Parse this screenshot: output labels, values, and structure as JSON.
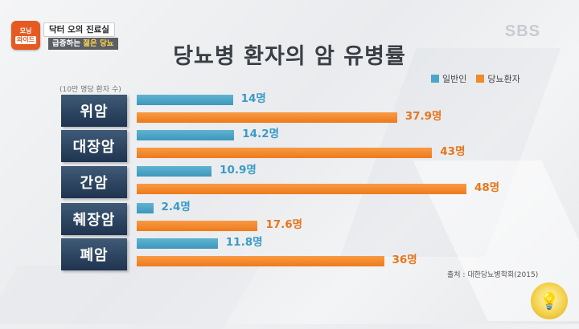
{
  "banner": {
    "badge_top": "모닝",
    "badge_bottom": "와이드",
    "line1": "닥터 오의 진료실",
    "line2_prefix": "급증하는 ",
    "line2_highlight": "젊은 당뇨"
  },
  "logo": "SBS",
  "chart_data": {
    "type": "bar",
    "orientation": "horizontal",
    "title": "당뇨병 환자의 암 유병률",
    "unit_note": "(10만 명당 환자 수)",
    "categories": [
      "위암",
      "대장암",
      "간암",
      "췌장암",
      "폐암"
    ],
    "series": [
      {
        "name": "일반인",
        "color": "#4ba6cb",
        "values": [
          14,
          14.2,
          10.9,
          2.4,
          11.8
        ],
        "labels": [
          "14명",
          "14.2명",
          "10.9명",
          "2.4명",
          "11.8명"
        ]
      },
      {
        "name": "당뇨환자",
        "color": "#f08a2a",
        "values": [
          37.9,
          43,
          48,
          17.6,
          36
        ],
        "labels": [
          "37.9명",
          "43명",
          "48명",
          "17.6명",
          "36명"
        ]
      }
    ],
    "xlim": [
      0,
      48
    ],
    "legend_position": "top-right",
    "source": "출처 : 대한당뇨병학회(2015)"
  },
  "watermark_icon": "lightbulb-icon"
}
